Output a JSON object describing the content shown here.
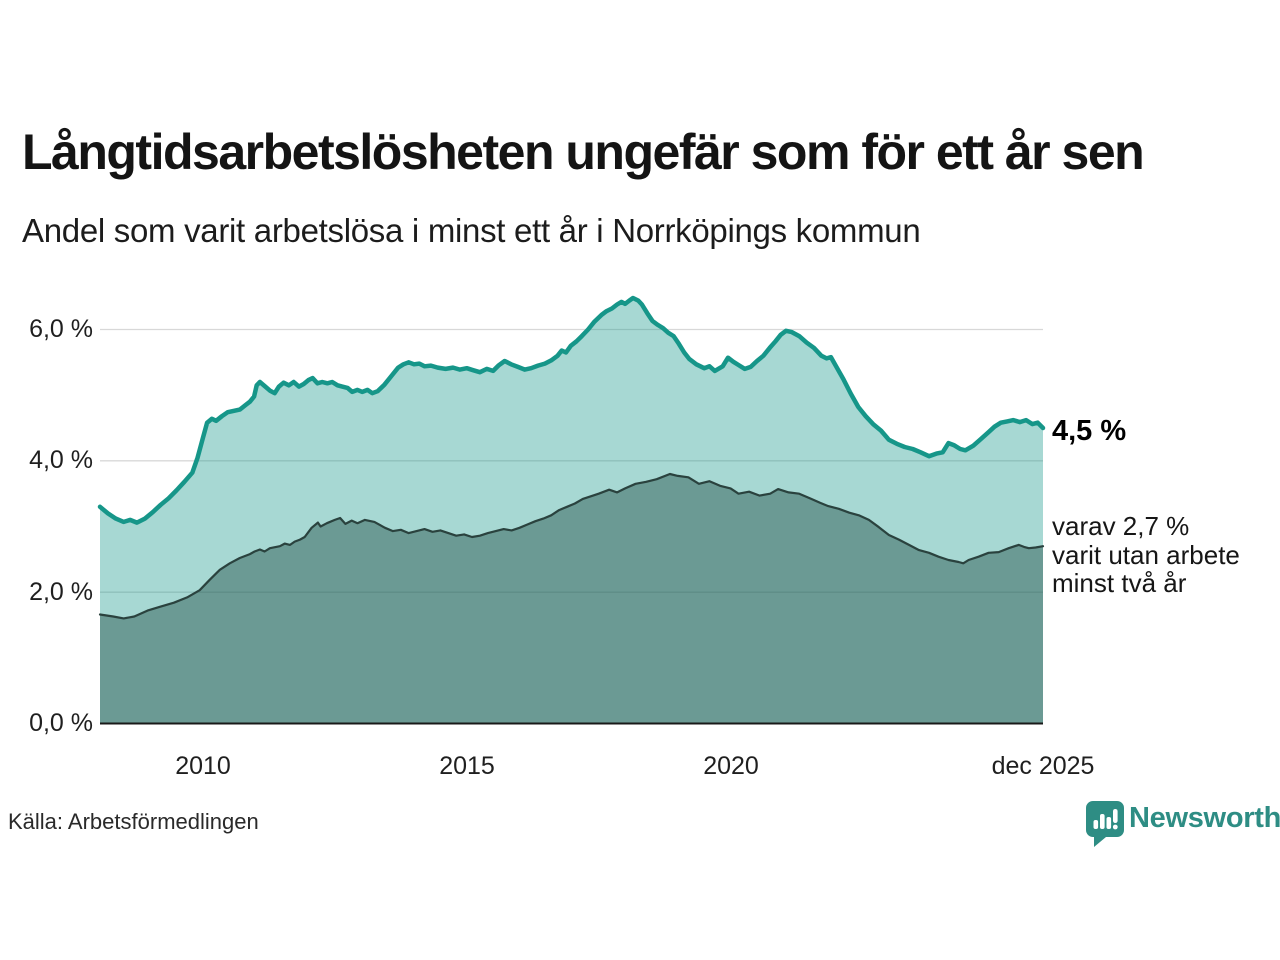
{
  "header": {
    "title": "Långtidsarbetslösheten ungefär som för ett år sen",
    "subtitle": "Andel som varit arbetslösa i minst ett år i Norrköpings kommun"
  },
  "chart_data": {
    "type": "area",
    "title": "Långtidsarbetslösheten ungefär som för ett år sen",
    "subtitle": "Andel som varit arbetslösa i minst ett år i Norrköpings kommun",
    "unit": "%",
    "grid": "horizontal",
    "legend_position": "none",
    "x_range": [
      2008.05,
      2025.92
    ],
    "ylim": [
      0,
      6.85
    ],
    "y_ticks": [
      {
        "v": 0,
        "label": "0,0 %"
      },
      {
        "v": 2,
        "label": "2,0 %"
      },
      {
        "v": 4,
        "label": "4,0 %"
      },
      {
        "v": 6,
        "label": "6,0 %"
      }
    ],
    "x_ticks": [
      {
        "t": 2010,
        "label": "2010"
      },
      {
        "t": 2015,
        "label": "2015"
      },
      {
        "t": 2020,
        "label": "2020"
      },
      {
        "t": 2025.92,
        "label": "dec 2025"
      }
    ],
    "series": [
      {
        "name": "Andel arbetslösa minst ett år",
        "latest_value": 4.5,
        "latest_label": "4,5 %",
        "line_color": "#169689",
        "fill_color": "rgba(24,152,139,0.38)",
        "line_width": 4.5,
        "points": [
          [
            2008.05,
            3.3
          ],
          [
            2008.2,
            3.2
          ],
          [
            2008.35,
            3.12
          ],
          [
            2008.5,
            3.07
          ],
          [
            2008.62,
            3.1
          ],
          [
            2008.75,
            3.06
          ],
          [
            2008.9,
            3.12
          ],
          [
            2009.05,
            3.22
          ],
          [
            2009.2,
            3.33
          ],
          [
            2009.35,
            3.43
          ],
          [
            2009.5,
            3.55
          ],
          [
            2009.65,
            3.68
          ],
          [
            2009.8,
            3.82
          ],
          [
            2009.9,
            4.05
          ],
          [
            2010.0,
            4.35
          ],
          [
            2010.08,
            4.58
          ],
          [
            2010.17,
            4.64
          ],
          [
            2010.25,
            4.61
          ],
          [
            2010.36,
            4.68
          ],
          [
            2010.47,
            4.74
          ],
          [
            2010.58,
            4.76
          ],
          [
            2010.7,
            4.78
          ],
          [
            2010.81,
            4.85
          ],
          [
            2010.89,
            4.9
          ],
          [
            2010.97,
            4.98
          ],
          [
            2011.02,
            5.15
          ],
          [
            2011.08,
            5.2
          ],
          [
            2011.17,
            5.14
          ],
          [
            2011.27,
            5.07
          ],
          [
            2011.36,
            5.03
          ],
          [
            2011.44,
            5.13
          ],
          [
            2011.53,
            5.19
          ],
          [
            2011.63,
            5.15
          ],
          [
            2011.72,
            5.2
          ],
          [
            2011.82,
            5.13
          ],
          [
            2011.91,
            5.17
          ],
          [
            2012.0,
            5.23
          ],
          [
            2012.08,
            5.26
          ],
          [
            2012.17,
            5.18
          ],
          [
            2012.26,
            5.2
          ],
          [
            2012.36,
            5.18
          ],
          [
            2012.45,
            5.2
          ],
          [
            2012.55,
            5.15
          ],
          [
            2012.64,
            5.13
          ],
          [
            2012.74,
            5.11
          ],
          [
            2012.83,
            5.05
          ],
          [
            2012.93,
            5.08
          ],
          [
            2013.02,
            5.05
          ],
          [
            2013.12,
            5.08
          ],
          [
            2013.21,
            5.03
          ],
          [
            2013.31,
            5.06
          ],
          [
            2013.44,
            5.16
          ],
          [
            2013.58,
            5.3
          ],
          [
            2013.7,
            5.42
          ],
          [
            2013.8,
            5.47
          ],
          [
            2013.9,
            5.5
          ],
          [
            2014.0,
            5.47
          ],
          [
            2014.1,
            5.48
          ],
          [
            2014.2,
            5.44
          ],
          [
            2014.32,
            5.45
          ],
          [
            2014.45,
            5.42
          ],
          [
            2014.6,
            5.4
          ],
          [
            2014.74,
            5.42
          ],
          [
            2014.87,
            5.39
          ],
          [
            2015.0,
            5.41
          ],
          [
            2015.12,
            5.38
          ],
          [
            2015.25,
            5.35
          ],
          [
            2015.38,
            5.4
          ],
          [
            2015.5,
            5.37
          ],
          [
            2015.6,
            5.45
          ],
          [
            2015.72,
            5.52
          ],
          [
            2015.84,
            5.47
          ],
          [
            2015.97,
            5.43
          ],
          [
            2016.1,
            5.39
          ],
          [
            2016.22,
            5.41
          ],
          [
            2016.35,
            5.45
          ],
          [
            2016.48,
            5.48
          ],
          [
            2016.6,
            5.53
          ],
          [
            2016.72,
            5.6
          ],
          [
            2016.8,
            5.68
          ],
          [
            2016.88,
            5.65
          ],
          [
            2016.97,
            5.75
          ],
          [
            2017.08,
            5.82
          ],
          [
            2017.18,
            5.9
          ],
          [
            2017.3,
            6.0
          ],
          [
            2017.42,
            6.12
          ],
          [
            2017.55,
            6.22
          ],
          [
            2017.65,
            6.28
          ],
          [
            2017.75,
            6.32
          ],
          [
            2017.85,
            6.38
          ],
          [
            2017.93,
            6.42
          ],
          [
            2018.0,
            6.39
          ],
          [
            2018.08,
            6.44
          ],
          [
            2018.15,
            6.48
          ],
          [
            2018.25,
            6.44
          ],
          [
            2018.32,
            6.38
          ],
          [
            2018.42,
            6.25
          ],
          [
            2018.52,
            6.13
          ],
          [
            2018.62,
            6.07
          ],
          [
            2018.72,
            6.02
          ],
          [
            2018.82,
            5.95
          ],
          [
            2018.92,
            5.9
          ],
          [
            2019.02,
            5.78
          ],
          [
            2019.12,
            5.65
          ],
          [
            2019.22,
            5.55
          ],
          [
            2019.35,
            5.47
          ],
          [
            2019.5,
            5.41
          ],
          [
            2019.6,
            5.44
          ],
          [
            2019.7,
            5.37
          ],
          [
            2019.85,
            5.44
          ],
          [
            2019.95,
            5.57
          ],
          [
            2020.05,
            5.51
          ],
          [
            2020.15,
            5.46
          ],
          [
            2020.27,
            5.4
          ],
          [
            2020.38,
            5.43
          ],
          [
            2020.5,
            5.52
          ],
          [
            2020.62,
            5.6
          ],
          [
            2020.74,
            5.72
          ],
          [
            2020.85,
            5.82
          ],
          [
            2020.95,
            5.92
          ],
          [
            2021.05,
            5.98
          ],
          [
            2021.16,
            5.96
          ],
          [
            2021.3,
            5.9
          ],
          [
            2021.44,
            5.8
          ],
          [
            2021.58,
            5.72
          ],
          [
            2021.72,
            5.6
          ],
          [
            2021.82,
            5.56
          ],
          [
            2021.9,
            5.58
          ],
          [
            2022.0,
            5.44
          ],
          [
            2022.14,
            5.24
          ],
          [
            2022.28,
            5.02
          ],
          [
            2022.42,
            4.82
          ],
          [
            2022.56,
            4.68
          ],
          [
            2022.7,
            4.56
          ],
          [
            2022.85,
            4.46
          ],
          [
            2023.0,
            4.32
          ],
          [
            2023.15,
            4.26
          ],
          [
            2023.3,
            4.21
          ],
          [
            2023.45,
            4.18
          ],
          [
            2023.6,
            4.13
          ],
          [
            2023.76,
            4.07
          ],
          [
            2023.9,
            4.11
          ],
          [
            2024.02,
            4.13
          ],
          [
            2024.13,
            4.27
          ],
          [
            2024.23,
            4.24
          ],
          [
            2024.35,
            4.18
          ],
          [
            2024.45,
            4.16
          ],
          [
            2024.6,
            4.23
          ],
          [
            2024.74,
            4.33
          ],
          [
            2024.88,
            4.43
          ],
          [
            2025.0,
            4.52
          ],
          [
            2025.12,
            4.58
          ],
          [
            2025.24,
            4.6
          ],
          [
            2025.36,
            4.62
          ],
          [
            2025.48,
            4.59
          ],
          [
            2025.6,
            4.62
          ],
          [
            2025.72,
            4.56
          ],
          [
            2025.82,
            4.58
          ],
          [
            2025.92,
            4.5
          ]
        ]
      },
      {
        "name": "Varav utan arbete minst två år",
        "latest_value": 2.7,
        "latest_label": "2,7 %",
        "line_color": "#2a423e",
        "fill_color": "rgba(32,74,68,0.44)",
        "line_width": 2.2,
        "points": [
          [
            2008.05,
            1.66
          ],
          [
            2008.3,
            1.63
          ],
          [
            2008.5,
            1.6
          ],
          [
            2008.7,
            1.63
          ],
          [
            2008.95,
            1.72
          ],
          [
            2009.2,
            1.78
          ],
          [
            2009.45,
            1.84
          ],
          [
            2009.7,
            1.92
          ],
          [
            2009.94,
            2.03
          ],
          [
            2010.13,
            2.19
          ],
          [
            2010.32,
            2.34
          ],
          [
            2010.51,
            2.44
          ],
          [
            2010.7,
            2.52
          ],
          [
            2010.89,
            2.58
          ],
          [
            2010.98,
            2.62
          ],
          [
            2011.08,
            2.65
          ],
          [
            2011.17,
            2.62
          ],
          [
            2011.27,
            2.67
          ],
          [
            2011.46,
            2.7
          ],
          [
            2011.55,
            2.74
          ],
          [
            2011.65,
            2.72
          ],
          [
            2011.74,
            2.77
          ],
          [
            2011.84,
            2.8
          ],
          [
            2011.93,
            2.84
          ],
          [
            2012.06,
            2.98
          ],
          [
            2012.18,
            3.06
          ],
          [
            2012.23,
            3.0
          ],
          [
            2012.35,
            3.05
          ],
          [
            2012.5,
            3.1
          ],
          [
            2012.6,
            3.13
          ],
          [
            2012.7,
            3.04
          ],
          [
            2012.82,
            3.09
          ],
          [
            2012.93,
            3.05
          ],
          [
            2013.07,
            3.1
          ],
          [
            2013.25,
            3.07
          ],
          [
            2013.45,
            2.98
          ],
          [
            2013.6,
            2.93
          ],
          [
            2013.75,
            2.95
          ],
          [
            2013.9,
            2.9
          ],
          [
            2014.05,
            2.93
          ],
          [
            2014.2,
            2.96
          ],
          [
            2014.35,
            2.92
          ],
          [
            2014.5,
            2.94
          ],
          [
            2014.65,
            2.9
          ],
          [
            2014.8,
            2.86
          ],
          [
            2014.95,
            2.88
          ],
          [
            2015.1,
            2.84
          ],
          [
            2015.25,
            2.86
          ],
          [
            2015.4,
            2.9
          ],
          [
            2015.55,
            2.93
          ],
          [
            2015.7,
            2.96
          ],
          [
            2015.85,
            2.94
          ],
          [
            2016.0,
            2.98
          ],
          [
            2016.15,
            3.03
          ],
          [
            2016.3,
            3.08
          ],
          [
            2016.45,
            3.12
          ],
          [
            2016.6,
            3.17
          ],
          [
            2016.75,
            3.25
          ],
          [
            2016.9,
            3.3
          ],
          [
            2017.05,
            3.35
          ],
          [
            2017.2,
            3.42
          ],
          [
            2017.35,
            3.46
          ],
          [
            2017.5,
            3.5
          ],
          [
            2017.7,
            3.56
          ],
          [
            2017.85,
            3.52
          ],
          [
            2018.0,
            3.58
          ],
          [
            2018.2,
            3.65
          ],
          [
            2018.4,
            3.68
          ],
          [
            2018.6,
            3.72
          ],
          [
            2018.85,
            3.8
          ],
          [
            2019.0,
            3.77
          ],
          [
            2019.2,
            3.75
          ],
          [
            2019.4,
            3.65
          ],
          [
            2019.6,
            3.69
          ],
          [
            2019.8,
            3.62
          ],
          [
            2020.0,
            3.58
          ],
          [
            2020.15,
            3.5
          ],
          [
            2020.35,
            3.53
          ],
          [
            2020.55,
            3.47
          ],
          [
            2020.75,
            3.5
          ],
          [
            2020.9,
            3.57
          ],
          [
            2021.1,
            3.52
          ],
          [
            2021.3,
            3.5
          ],
          [
            2021.5,
            3.43
          ],
          [
            2021.7,
            3.36
          ],
          [
            2021.85,
            3.31
          ],
          [
            2022.05,
            3.27
          ],
          [
            2022.25,
            3.21
          ],
          [
            2022.43,
            3.17
          ],
          [
            2022.62,
            3.1
          ],
          [
            2022.81,
            2.99
          ],
          [
            2023.0,
            2.87
          ],
          [
            2023.19,
            2.8
          ],
          [
            2023.38,
            2.72
          ],
          [
            2023.57,
            2.64
          ],
          [
            2023.76,
            2.6
          ],
          [
            2023.94,
            2.54
          ],
          [
            2024.13,
            2.49
          ],
          [
            2024.32,
            2.46
          ],
          [
            2024.41,
            2.44
          ],
          [
            2024.51,
            2.49
          ],
          [
            2024.7,
            2.54
          ],
          [
            2024.89,
            2.6
          ],
          [
            2025.08,
            2.61
          ],
          [
            2025.27,
            2.67
          ],
          [
            2025.46,
            2.72
          ],
          [
            2025.56,
            2.69
          ],
          [
            2025.65,
            2.67
          ],
          [
            2025.78,
            2.68
          ],
          [
            2025.92,
            2.7
          ]
        ]
      }
    ]
  },
  "annotations": {
    "latest_total": "4,5 %",
    "two_year_note": "varav 2,7 %\nvarit utan arbete\nminst två år"
  },
  "footer": {
    "source": "Källa: Arbetsförmedlingen",
    "brand_name": "Newsworthy"
  },
  "colors": {
    "accent_teal": "#169689",
    "brand_teal": "#2e8d84",
    "grid": "#d8d8d8",
    "baseline": "#191919",
    "axis_text": "#1f1f1f"
  }
}
